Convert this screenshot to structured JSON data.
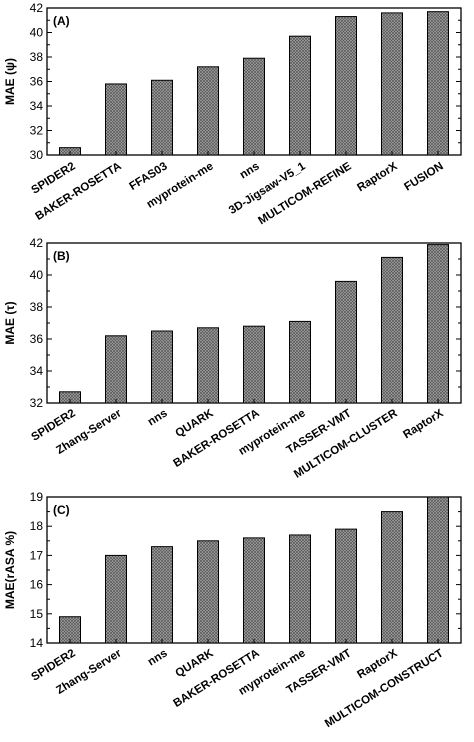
{
  "chart_data": [
    {
      "type": "bar",
      "panel_label": "(A)",
      "ylabel": "MAE (ψ)",
      "ylim": [
        30,
        42
      ],
      "yticks": [
        30,
        32,
        34,
        36,
        38,
        40,
        42
      ],
      "categories": [
        "SPIDER2",
        "BAKER-ROSETTA",
        "FFAS03",
        "myprotein-me",
        "nns",
        "3D-Jigsaw-V5_1",
        "MULTICOM-REFINE",
        "RaptorX",
        "FUSION"
      ],
      "values": [
        30.6,
        35.8,
        36.1,
        37.2,
        37.9,
        39.7,
        41.3,
        41.6,
        41.7
      ]
    },
    {
      "type": "bar",
      "panel_label": "(B)",
      "ylabel": "MAE (τ)",
      "ylim": [
        32,
        42
      ],
      "yticks": [
        32,
        34,
        36,
        38,
        40,
        42
      ],
      "categories": [
        "SPIDER2",
        "Zhang-Server",
        "nns",
        "QUARK",
        "BAKER-ROSETTA",
        "myprotein-me",
        "TASSER-VMT",
        "MULTICOM-CLUSTER",
        "RaptorX"
      ],
      "values": [
        32.7,
        36.2,
        36.5,
        36.7,
        36.8,
        37.1,
        39.6,
        41.1,
        41.9
      ]
    },
    {
      "type": "bar",
      "panel_label": "(C)",
      "ylabel": "MAE(rASA %)",
      "ylim": [
        14,
        19
      ],
      "yticks": [
        14,
        15,
        16,
        17,
        18,
        19
      ],
      "categories": [
        "SPIDER2",
        "Zhang-Server",
        "nns",
        "QUARK",
        "BAKER-ROSETTA",
        "myprotein-me",
        "TASSER-VMT",
        "RaptorX",
        "MULTICOM-CONSTRUCT"
      ],
      "values": [
        14.9,
        17.0,
        17.3,
        17.5,
        17.6,
        17.7,
        17.9,
        18.5,
        19.0
      ]
    }
  ],
  "colors": {
    "bar_fill": "#9a9a9a",
    "bar_hatch": "#555555",
    "axis": "#000000"
  }
}
